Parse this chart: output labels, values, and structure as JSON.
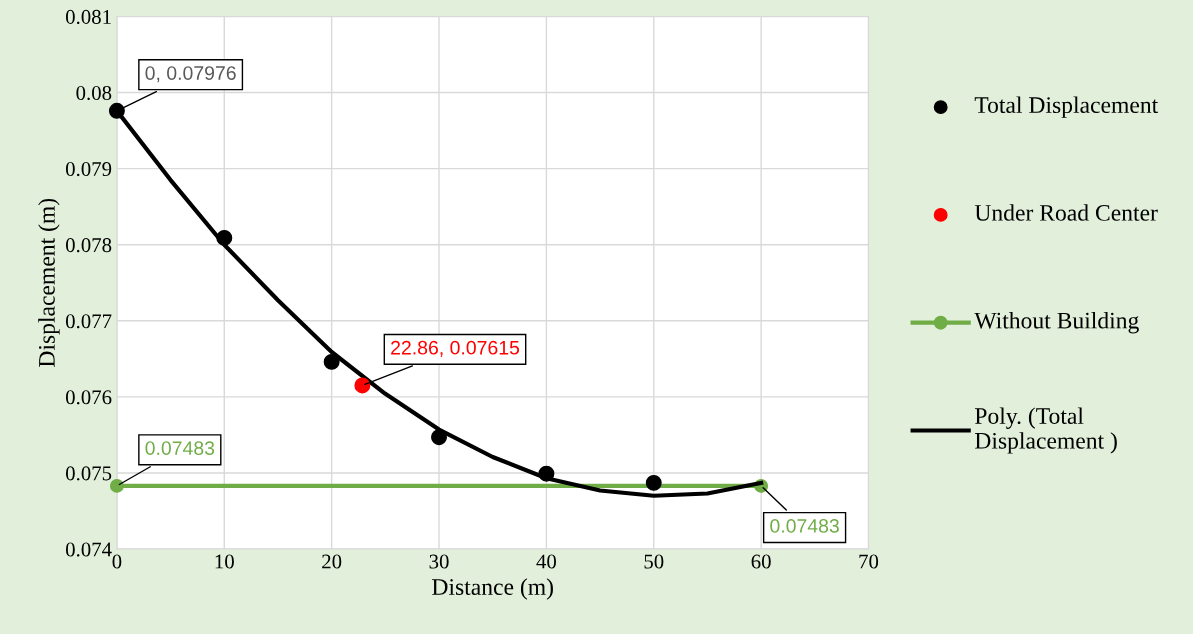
{
  "chart_data": {
    "type": "scatter",
    "xlabel": "Distance (m)",
    "ylabel": "Displacement (m)",
    "xlim": [
      0,
      70
    ],
    "xticks": [
      0,
      10,
      20,
      30,
      40,
      50,
      60,
      70
    ],
    "ylim": [
      0.074,
      0.081
    ],
    "yticks": [
      0.074,
      0.075,
      0.076,
      0.077,
      0.078,
      0.079,
      {
        "value": 0.08,
        "label": "0.08"
      },
      0.081
    ],
    "grid": true,
    "legend": "right",
    "series": [
      {
        "name": "Total Displacement",
        "marker": "circle",
        "color": "#000000",
        "x": [
          0,
          10,
          20,
          30,
          40,
          50
        ],
        "values": [
          0.07976,
          0.07809,
          0.07646,
          0.07547,
          0.07499,
          0.07487
        ],
        "value_labels": [
          "0, 0.07976",
          null,
          null,
          null,
          null,
          null
        ]
      },
      {
        "name": "Under Road Center",
        "marker": "circle",
        "color": "#ff0000",
        "x": [
          22.86
        ],
        "values": [
          0.07615
        ],
        "value_labels": [
          "22.86, 0.07615"
        ]
      },
      {
        "name": "Without Building",
        "type": "line",
        "marker": "circle",
        "color": "#70ad47",
        "x": [
          0,
          60
        ],
        "values": [
          0.07483,
          0.07483
        ],
        "value_labels": [
          "0.07483",
          "0.07483"
        ]
      },
      {
        "name": "Poly. (Total Displacement )",
        "type": "line",
        "marker": "none",
        "color": "#000000",
        "x": [
          0,
          5,
          10,
          15,
          20,
          25,
          30,
          35,
          40,
          45,
          50,
          55,
          60
        ],
        "values": [
          0.07976,
          0.07885,
          0.078,
          0.07727,
          0.07659,
          0.07604,
          0.07557,
          0.07521,
          0.07493,
          0.07477,
          0.0747,
          0.07473,
          0.07487
        ]
      }
    ]
  }
}
